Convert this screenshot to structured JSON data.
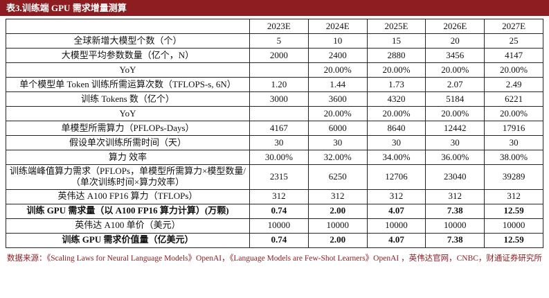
{
  "title": "表3.训练端 GPU 需求增量测算",
  "table": {
    "columns": [
      "",
      "2023E",
      "2024E",
      "2025E",
      "2026E",
      "2027E"
    ],
    "rows": [
      {
        "label": "全球新增大模型个数（个）",
        "values": [
          "5",
          "10",
          "15",
          "20",
          "25"
        ],
        "bold": false
      },
      {
        "label": "大模型平均参数数量（亿个，N）",
        "values": [
          "2000",
          "2400",
          "2880",
          "3456",
          "4147"
        ],
        "bold": false
      },
      {
        "label": "YoY",
        "values": [
          "",
          "20.00%",
          "20.00%",
          "20.00%",
          "20.00%"
        ],
        "bold": false
      },
      {
        "label": "单个模型单 Token 训练所需运算次数（TFLOPS-s, 6N）",
        "values": [
          "1.20",
          "1.44",
          "1.73",
          "2.07",
          "2.49"
        ],
        "bold": false
      },
      {
        "label": "训练 Tokens 数（亿个）",
        "values": [
          "3000",
          "3600",
          "4320",
          "5184",
          "6221"
        ],
        "bold": false
      },
      {
        "label": "YoY",
        "values": [
          "",
          "20.00%",
          "20.00%",
          "20.00%",
          "20.00%"
        ],
        "bold": false
      },
      {
        "label": "单模型所需算力（PFLOPs-Days）",
        "values": [
          "4167",
          "6000",
          "8640",
          "12442",
          "17916"
        ],
        "bold": false
      },
      {
        "label": "假设单次训练所需时间（天）",
        "values": [
          "30",
          "30",
          "30",
          "30",
          "30"
        ],
        "bold": false
      },
      {
        "label": "算力 效率",
        "values": [
          "30.00%",
          "32.00%",
          "34.00%",
          "36.00%",
          "38.00%"
        ],
        "bold": false
      },
      {
        "label": "训练端峰值算力需求（PFLOPs，单模型所需算力×模型数量/（单次训练时间×算力效率）",
        "values": [
          "2315",
          "6250",
          "12706",
          "23040",
          "39289"
        ],
        "bold": false
      },
      {
        "label": "英伟达  A100 FP16  算力（TFLOPs）",
        "values": [
          "312",
          "312",
          "312",
          "312",
          "312"
        ],
        "bold": false
      },
      {
        "label": "训练 GPU 需求量（以 A100 FP16 算力计算）(万颗)",
        "values": [
          "0.74",
          "2.00",
          "4.07",
          "7.38",
          "12.59"
        ],
        "bold": true
      },
      {
        "label": "英伟达  A100  单价（美元）",
        "values": [
          "10000",
          "10000",
          "10000",
          "10000",
          "10000"
        ],
        "bold": false
      },
      {
        "label": "训练 GPU 需求价值量（亿美元）",
        "values": [
          "0.74",
          "2.00",
          "4.07",
          "7.38",
          "12.59"
        ],
        "bold": true
      }
    ]
  },
  "footer": "数据来源：《Scaling Laws for Neural Language Models》OpenAI，《Language Models are Few-Shot Learners》OpenAI ，英伟达官网，CNBC，财通证券研究所"
}
